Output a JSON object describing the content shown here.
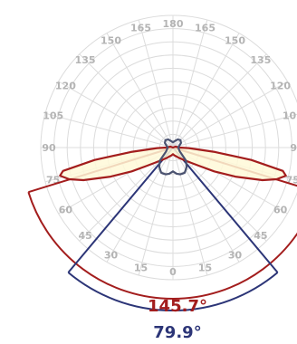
{
  "chart_data": {
    "type": "polar",
    "angle_ticks": [
      "0",
      "15",
      "30",
      "45",
      "60",
      "75",
      "90",
      "105",
      "120",
      "135",
      "150",
      "165",
      "180",
      "165",
      "150",
      "135",
      "120",
      "105",
      "90",
      "75",
      "60",
      "45",
      "30",
      "15"
    ],
    "series": [
      {
        "color": "#a31d1d",
        "fill": "#fff9d8",
        "points": [
          [
            0,
            0.05
          ],
          [
            10,
            0.06
          ],
          [
            20,
            0.07
          ],
          [
            30,
            0.09
          ],
          [
            40,
            0.12
          ],
          [
            50,
            0.18
          ],
          [
            55,
            0.24
          ],
          [
            60,
            0.36
          ],
          [
            65,
            0.52
          ],
          [
            70,
            0.72
          ],
          [
            73,
            0.82
          ],
          [
            76,
            0.88
          ],
          [
            78,
            0.85
          ],
          [
            81,
            0.6
          ],
          [
            84,
            0.32
          ],
          [
            88,
            0.12
          ],
          [
            90,
            0.05
          ],
          [
            110,
            0.02
          ],
          [
            180,
            0.0
          ]
        ]
      },
      {
        "color": "#4a5270",
        "fill": "none",
        "points": [
          [
            0,
            0.18
          ],
          [
            8,
            0.2
          ],
          [
            15,
            0.21
          ],
          [
            20,
            0.21
          ],
          [
            25,
            0.21
          ],
          [
            35,
            0.18
          ],
          [
            45,
            0.14
          ],
          [
            60,
            0.06
          ],
          [
            90,
            0.04
          ],
          [
            120,
            0.07
          ],
          [
            135,
            0.08
          ],
          [
            150,
            0.07
          ],
          [
            165,
            0.05
          ],
          [
            180,
            0.04
          ]
        ]
      }
    ],
    "beam_angles": [
      {
        "text": "145.7°",
        "color": "#a31d1d"
      },
      {
        "text": "79.9°",
        "color": "#2c3577"
      }
    ]
  }
}
